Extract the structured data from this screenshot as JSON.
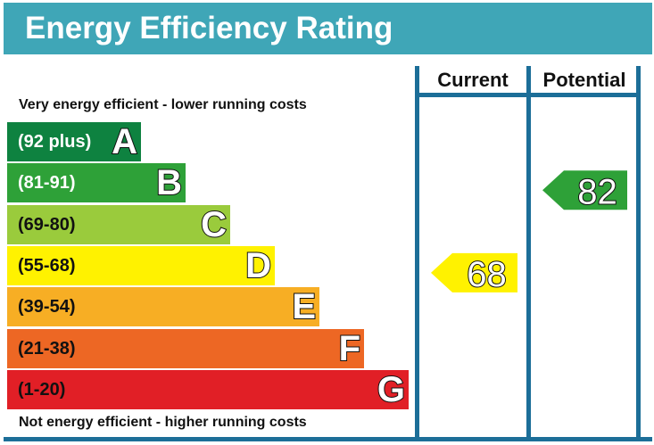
{
  "title": "Energy Efficiency Rating",
  "columns": {
    "current": "Current",
    "potential": "Potential"
  },
  "top_note": "Very energy efficient - lower running costs",
  "bottom_note": "Not energy efficient - higher running costs",
  "chart_data": {
    "type": "bar",
    "title": "Energy Efficiency Rating",
    "bands": [
      {
        "letter": "A",
        "range": "(92 plus)",
        "min": 92,
        "max": 100,
        "color": "#0e8240",
        "range_text_color": "#ffffff"
      },
      {
        "letter": "B",
        "range": "(81-91)",
        "min": 81,
        "max": 91,
        "color": "#2ea138",
        "range_text_color": "#ffffff"
      },
      {
        "letter": "C",
        "range": "(69-80)",
        "min": 69,
        "max": 80,
        "color": "#9acb3c",
        "range_text_color": "#111111"
      },
      {
        "letter": "D",
        "range": "(55-68)",
        "min": 55,
        "max": 68,
        "color": "#fff200",
        "range_text_color": "#111111"
      },
      {
        "letter": "E",
        "range": "(39-54)",
        "min": 39,
        "max": 54,
        "color": "#f7ae24",
        "range_text_color": "#111111"
      },
      {
        "letter": "F",
        "range": "(21-38)",
        "min": 21,
        "max": 38,
        "color": "#ed6724",
        "range_text_color": "#111111"
      },
      {
        "letter": "G",
        "range": "(1-20)",
        "min": 1,
        "max": 20,
        "color": "#e11f26",
        "range_text_color": "#111111"
      }
    ],
    "current": {
      "value": 68,
      "band": "D",
      "color": "#fff200"
    },
    "potential": {
      "value": 82,
      "band": "B",
      "color": "#2ea138"
    }
  }
}
